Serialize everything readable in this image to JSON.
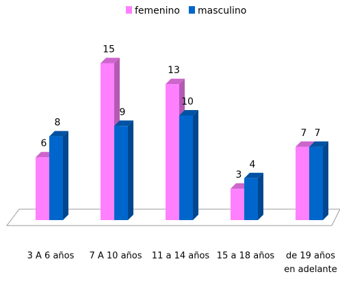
{
  "chart_data": {
    "type": "bar3d",
    "categories": [
      "3 A 6 años",
      "7 A 10 años",
      "11 a 14 años",
      "15 a 18 años",
      "de 19 años en adelante"
    ],
    "series": [
      {
        "name": "femenino",
        "color": "#ff80ff",
        "values": [
          6,
          15,
          13,
          3,
          7
        ]
      },
      {
        "name": "masculino",
        "color": "#0066cc",
        "values": [
          8,
          9,
          10,
          4,
          7
        ]
      }
    ],
    "legend": "top"
  }
}
